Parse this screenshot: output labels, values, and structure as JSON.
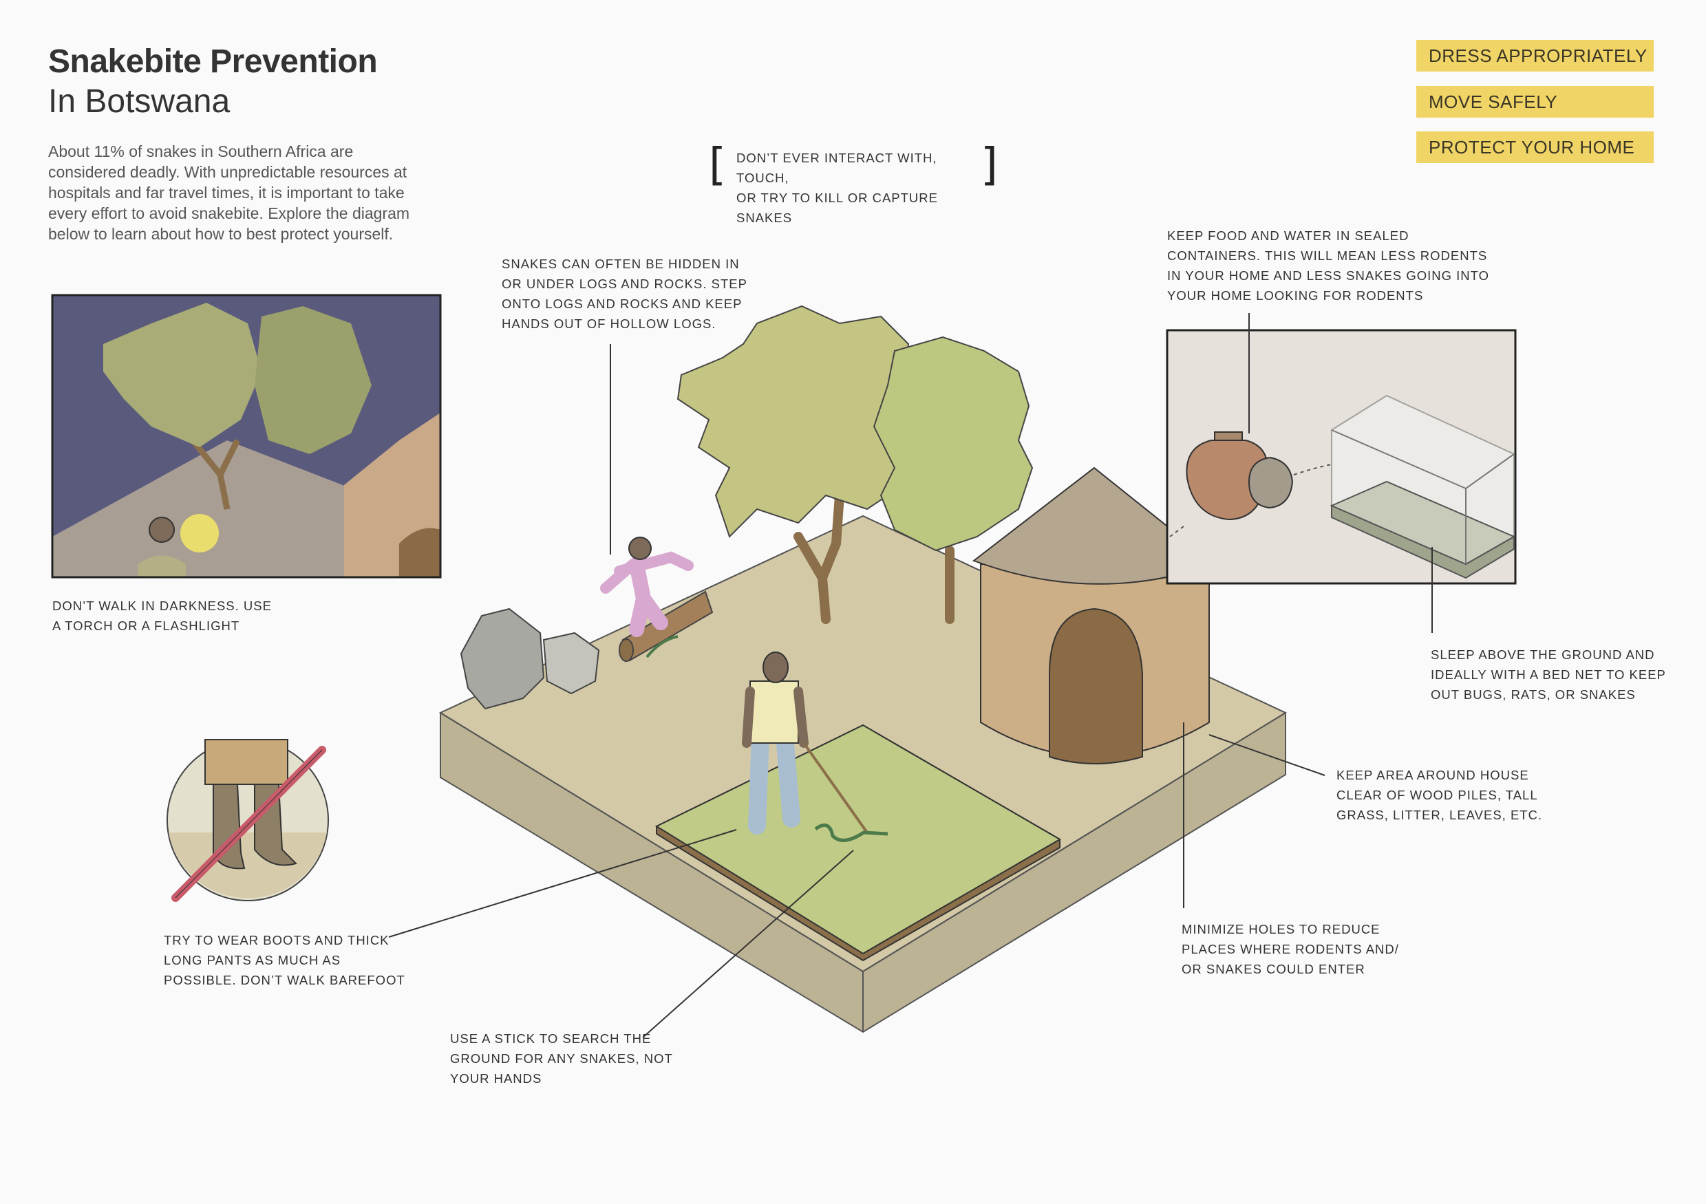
{
  "header": {
    "title": "Snakebite Prevention",
    "subtitle": "In Botswana",
    "intro": "About 11% of snakes in Southern Africa are considered deadly. With unpredictable resources at hospitals and far travel times, it is important to take every effort to avoid snakebite. Explore the diagram below to learn about how to best protect yourself."
  },
  "filters": [
    {
      "label": "DRESS APPROPRIATELY"
    },
    {
      "label": "MOVE SAFELY"
    },
    {
      "label": "PROTECT YOUR HOME"
    }
  ],
  "callout_center": "DON’T EVER INTERACT WITH, TOUCH,\nOR TRY TO KILL OR CAPTURE SNAKES",
  "notes": {
    "darkness": "DON’T WALK IN DARKNESS. USE\nA TORCH OR A FLASHLIGHT",
    "logs": "SNAKES CAN OFTEN BE HIDDEN IN\nOR UNDER LOGS AND ROCKS. STEP\nONTO LOGS AND ROCKS AND KEEP\nHANDS OUT OF HOLLOW LOGS.",
    "food": "KEEP FOOD AND WATER IN SEALED\nCONTAINERS. THIS WILL MEAN LESS RODENTS\nIN YOUR HOME AND LESS SNAKES GOING INTO\nYOUR HOME LOOKING FOR RODENTS",
    "sleep": "SLEEP ABOVE THE GROUND AND\nIDEALLY WITH A BED NET TO KEEP\nOUT BUGS, RATS, OR SNAKES",
    "clear": "KEEP AREA AROUND HOUSE\nCLEAR OF WOOD PILES, TALL\nGRASS, LITTER, LEAVES, ETC.",
    "holes": "MINIMIZE HOLES TO REDUCE\nPLACES WHERE RODENTS AND/\nOR SNAKES COULD ENTER",
    "boots": "TRY TO WEAR BOOTS AND THICK\nLONG PANTS AS MUCH AS\nPOSSIBLE. DON’T WALK BAREFOOT",
    "stick": "USE A STICK TO SEARCH THE\nGROUND FOR ANY SNAKES, NOT\nYOUR HANDS"
  },
  "colors": {
    "accent": "#f0d566",
    "ground_top": "#d4c9a6",
    "ground_side": "#bcb294",
    "grass": "#bfcb86",
    "night_sky": "#5a5a7d",
    "hut_wall": "#ccaf86",
    "hut_roof": "#b4a68f"
  }
}
